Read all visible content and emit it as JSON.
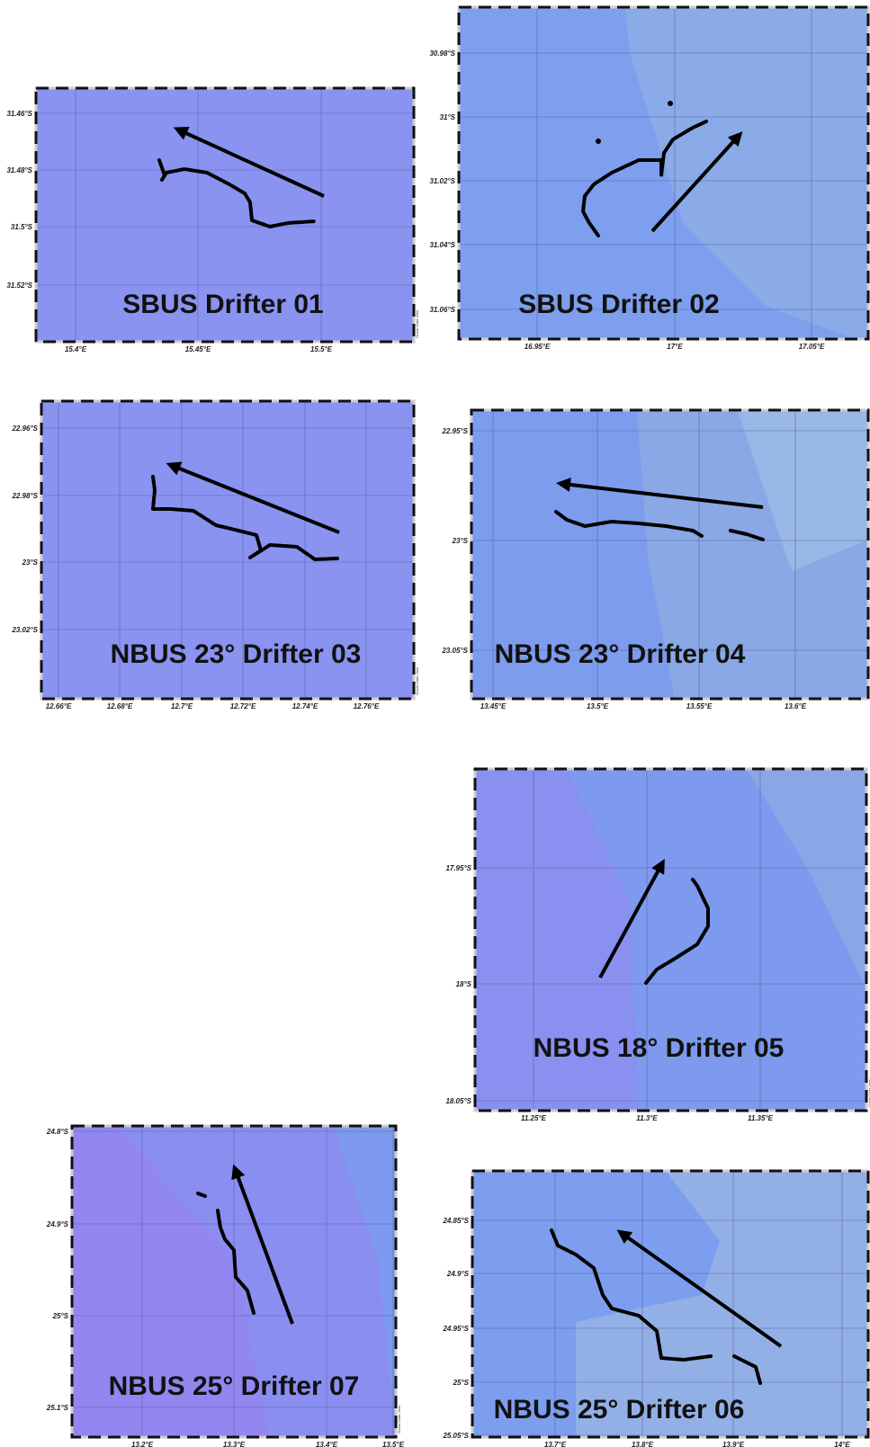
{
  "watermark": "Ocean Data View",
  "panels": [
    {
      "title": "SBUS Drifter 01",
      "x_ticks": [
        "15.4°E",
        "15.45°E",
        "15.5°E"
      ],
      "y_ticks": [
        "31.46°S",
        "31.48°S",
        "31.5°S",
        "31.52°S"
      ]
    },
    {
      "title": "SBUS Drifter 02",
      "x_ticks": [
        "16.95°E",
        "17°E",
        "17.05°E"
      ],
      "y_ticks": [
        "30.98°S",
        "31°S",
        "31.02°S",
        "31.04°S",
        "31.06°S"
      ]
    },
    {
      "title": "NBUS 23° Drifter 03",
      "x_ticks": [
        "12.66°E",
        "12.68°E",
        "12.7°E",
        "12.72°E",
        "12.74°E",
        "12.76°E"
      ],
      "y_ticks": [
        "22.96°S",
        "22.98°S",
        "23°S",
        "23.02°S"
      ]
    },
    {
      "title": "NBUS 23° Drifter 04",
      "x_ticks": [
        "13.45°E",
        "13.5°E",
        "13.55°E",
        "13.6°E"
      ],
      "y_ticks": [
        "22.95°S",
        "23°S",
        "23.05°S"
      ]
    },
    {
      "title": "NBUS 18° Drifter 05",
      "x_ticks": [
        "11.25°E",
        "11.3°E",
        "11.35°E"
      ],
      "y_ticks": [
        "17.95°S",
        "18°S",
        "18.05°S"
      ]
    },
    {
      "title": "NBUS 25° Drifter 07",
      "x_ticks": [
        "13.2°E",
        "13.3°E",
        "13.4°E",
        "13.5°E"
      ],
      "y_ticks": [
        "24.8°S",
        "24.9°S",
        "25°S",
        "25.1°S"
      ]
    },
    {
      "title": "NBUS 25° Drifter 06",
      "x_ticks": [
        "13.7°E",
        "13.8°E",
        "13.9°E",
        "14°E"
      ],
      "y_ticks": [
        "24.85°S",
        "24.9°S",
        "24.95°S",
        "25°S",
        "25.05°S"
      ]
    }
  ]
}
